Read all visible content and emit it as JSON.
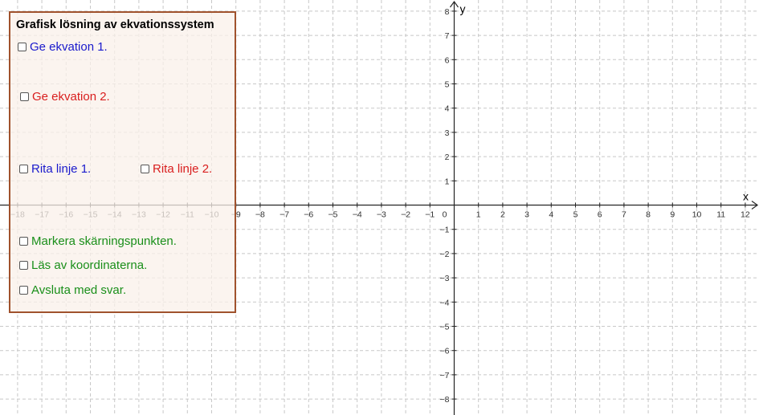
{
  "panel": {
    "title": "Grafisk lösning av ekvationssystem",
    "border_color": "#a0522d",
    "background_color": "#faf0ea",
    "checkboxes": [
      {
        "label": "Ge ekvation 1.",
        "color": "#1a1acc",
        "checked": false
      },
      {
        "label": "Ge ekvation 2.",
        "color": "#d91e1e",
        "checked": false
      },
      {
        "label": "Rita linje 1.",
        "color": "#1a1acc",
        "checked": false
      },
      {
        "label": "Rita linje 2.",
        "color": "#d91e1e",
        "checked": false
      },
      {
        "label": "Markera skärningspunkten.",
        "color": "#1a8f1a",
        "checked": false
      },
      {
        "label": "Läs av koordinaterna.",
        "color": "#1a8f1a",
        "checked": false
      },
      {
        "label": "Avsluta med svar.",
        "color": "#1a8f1a",
        "checked": false
      }
    ]
  },
  "axes": {
    "x_label": "x",
    "y_label": "y",
    "x_range": [
      -18,
      12
    ],
    "y_range": [
      -8,
      8
    ],
    "x_ticks": [
      "−18",
      "−17",
      "−16",
      "−15",
      "−14",
      "−13",
      "−12",
      "−11",
      "−10",
      "−9",
      "−8",
      "−7",
      "−6",
      "−5",
      "−4",
      "−3",
      "−2",
      "−1",
      "0",
      "1",
      "2",
      "3",
      "4",
      "5",
      "6",
      "7",
      "8",
      "9",
      "10",
      "11",
      "12"
    ],
    "y_ticks": [
      "−8",
      "−7",
      "−6",
      "−5",
      "−4",
      "−3",
      "−2",
      "−1",
      "1",
      "2",
      "3",
      "4",
      "5",
      "6",
      "7",
      "8"
    ],
    "grid": true,
    "grid_color": "#c8c8c8",
    "axis_color": "#252525"
  }
}
